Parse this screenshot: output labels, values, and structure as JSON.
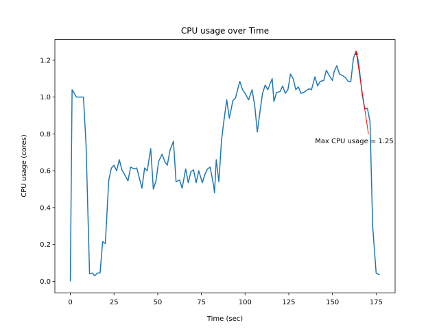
{
  "chart_data": {
    "type": "line",
    "title": "CPU usage over Time",
    "xlabel": "Time (sec)",
    "ylabel": "CPU usage (cores)",
    "x": [
      0,
      1,
      3.5,
      7.5,
      9,
      11,
      12.5,
      14,
      15.5,
      17,
      18.5,
      20,
      22,
      23.5,
      25,
      26.5,
      28,
      29.5,
      31,
      33,
      34.5,
      36.5,
      38,
      39.5,
      41,
      42.5,
      44,
      46,
      47.5,
      49,
      50.5,
      52.5,
      54,
      55.5,
      57,
      59,
      60.5,
      62.5,
      64,
      66,
      67.5,
      69,
      70.5,
      72,
      73.5,
      75.5,
      77,
      78.5,
      80,
      82,
      82.5,
      83.5,
      85,
      86.5,
      88,
      89.5,
      91,
      93,
      94.5,
      96,
      97,
      98.5,
      100,
      102,
      104,
      105.5,
      107,
      108.5,
      110,
      111.5,
      113,
      115.5,
      116.5,
      118,
      120,
      121.5,
      123,
      124.5,
      126,
      127.5,
      129,
      130.5,
      132,
      133.5,
      135,
      136.5,
      138,
      140,
      141.5,
      143,
      145,
      146.5,
      148,
      150,
      151,
      152.5,
      154,
      156,
      157.5,
      159,
      160.5,
      162,
      163.5,
      165,
      167,
      168.5,
      170,
      171.5,
      173,
      175,
      177
    ],
    "series": [
      {
        "name": "CPU usage",
        "color": "#1f77b4",
        "values": [
          0.0,
          1.04,
          1.0,
          1.0,
          0.74,
          0.04,
          0.045,
          0.03,
          0.045,
          0.045,
          0.215,
          0.205,
          0.55,
          0.615,
          0.63,
          0.6,
          0.66,
          0.605,
          0.58,
          0.545,
          0.62,
          0.61,
          0.615,
          0.56,
          0.505,
          0.615,
          0.6,
          0.72,
          0.5,
          0.545,
          0.65,
          0.69,
          0.65,
          0.63,
          0.71,
          0.76,
          0.54,
          0.55,
          0.505,
          0.61,
          0.535,
          0.595,
          0.605,
          0.535,
          0.6,
          0.535,
          0.58,
          0.61,
          0.62,
          0.52,
          0.48,
          0.66,
          0.54,
          0.765,
          0.88,
          0.985,
          0.885,
          0.98,
          0.995,
          1.05,
          1.085,
          1.04,
          1.02,
          0.985,
          1.04,
          0.955,
          0.81,
          0.92,
          1.02,
          1.065,
          1.04,
          1.1,
          0.975,
          1.025,
          1.03,
          1.06,
          1.02,
          1.04,
          1.125,
          1.1,
          1.04,
          1.055,
          1.02,
          1.025,
          1.035,
          1.045,
          1.04,
          1.11,
          1.06,
          1.085,
          1.09,
          1.145,
          1.12,
          1.09,
          1.14,
          1.17,
          1.125,
          1.115,
          1.105,
          1.085,
          1.085,
          1.21,
          1.25,
          1.185,
          1.015,
          0.935,
          0.94,
          0.865,
          0.3,
          0.045,
          0.035
        ]
      }
    ],
    "xlim": [
      -8.85,
      185.85
    ],
    "xticks": [
      0,
      25,
      50,
      75,
      100,
      125,
      150,
      175
    ],
    "ylim": [
      -0.0625,
      1.3125
    ],
    "yticks": [
      {
        "value": 0,
        "label": "0.0"
      },
      {
        "value": 0.2,
        "label": "0.2"
      },
      {
        "value": 0.4,
        "label": "0.4"
      },
      {
        "value": 0.6,
        "label": "0.6"
      },
      {
        "value": 0.8,
        "label": "0.8"
      },
      {
        "value": 1,
        "label": "1.0"
      },
      {
        "value": 1.2,
        "label": "1.2"
      }
    ],
    "annotation": {
      "text": "Max CPU usage = 1.25",
      "xy": [
        163.5,
        1.25
      ],
      "xytext": [
        140,
        0.75
      ],
      "color": "red"
    },
    "grid": false
  }
}
